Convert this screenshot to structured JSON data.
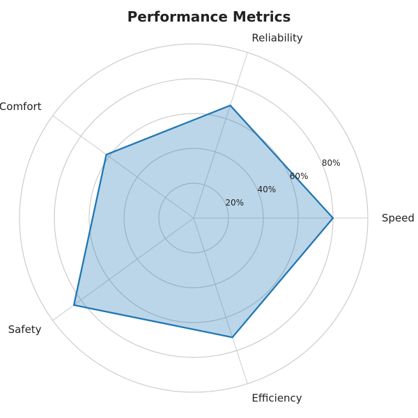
{
  "chart_data": {
    "type": "radar",
    "title": "Performance Metrics",
    "axes": [
      "Speed",
      "Reliability",
      "Comfort",
      "Safety",
      "Efficiency"
    ],
    "series": [
      {
        "values": [
          80,
          68,
          62,
          85,
          72
        ]
      }
    ],
    "r_range": [
      0,
      100
    ],
    "r_ticks": [
      20,
      40,
      60,
      80
    ],
    "r_tick_labels": [
      "20%",
      "40%",
      "60%",
      "80%"
    ],
    "grid": true,
    "colors": {
      "line": "#1f77b4",
      "fill": "#1f77b4",
      "grid": "#cccccc"
    }
  }
}
